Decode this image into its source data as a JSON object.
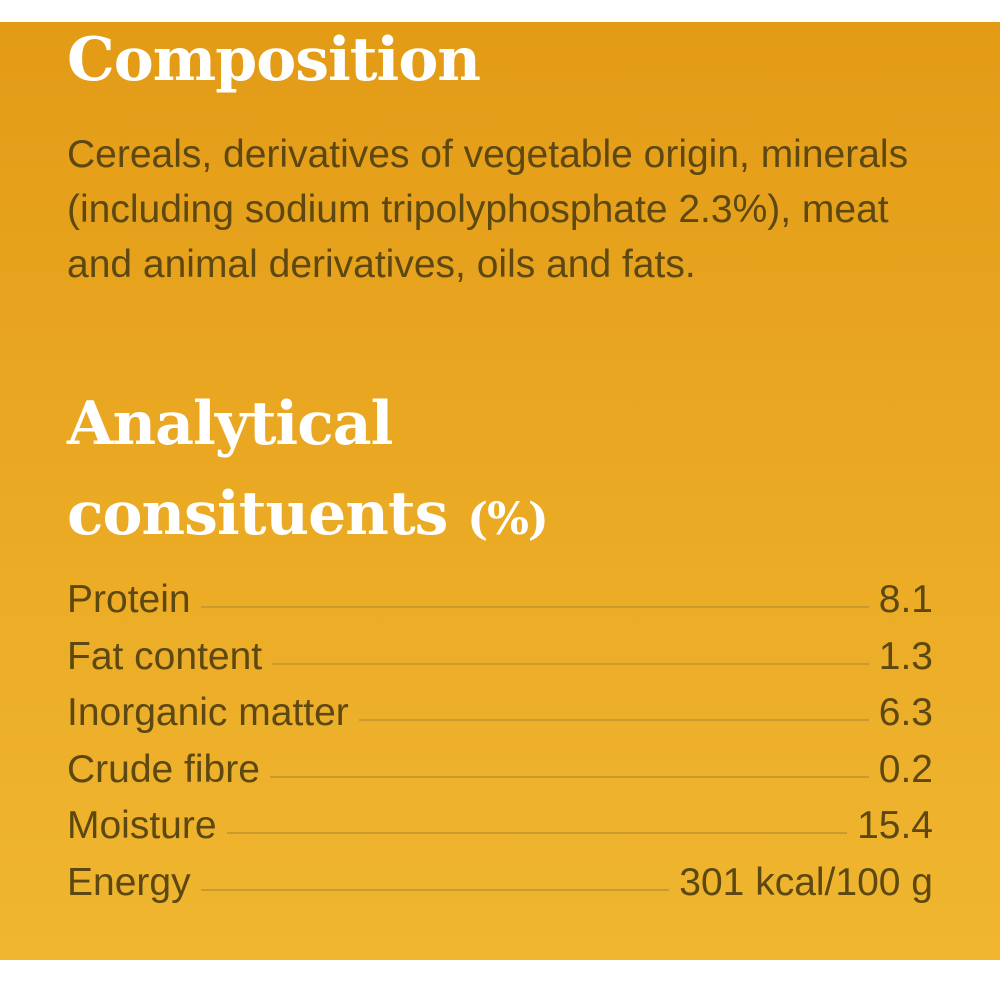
{
  "composition": {
    "title": "Composition",
    "text": "Cereals, derivatives of vegetable origin, minerals (including sodium tripolyphosphate 2.3%), meat and animal derivatives, oils and fats."
  },
  "analytical": {
    "title_line1": "Analytical",
    "title_line2": "consituents",
    "unit": "(%)",
    "rows": [
      {
        "label": "Protein",
        "value": "8.1"
      },
      {
        "label": "Fat content",
        "value": "1.3"
      },
      {
        "label": "Inorganic matter",
        "value": "6.3"
      },
      {
        "label": "Crude fibre",
        "value": "0.2"
      },
      {
        "label": "Moisture",
        "value": "15.4"
      },
      {
        "label": "Energy",
        "value": "301 kcal/100 g"
      }
    ]
  }
}
